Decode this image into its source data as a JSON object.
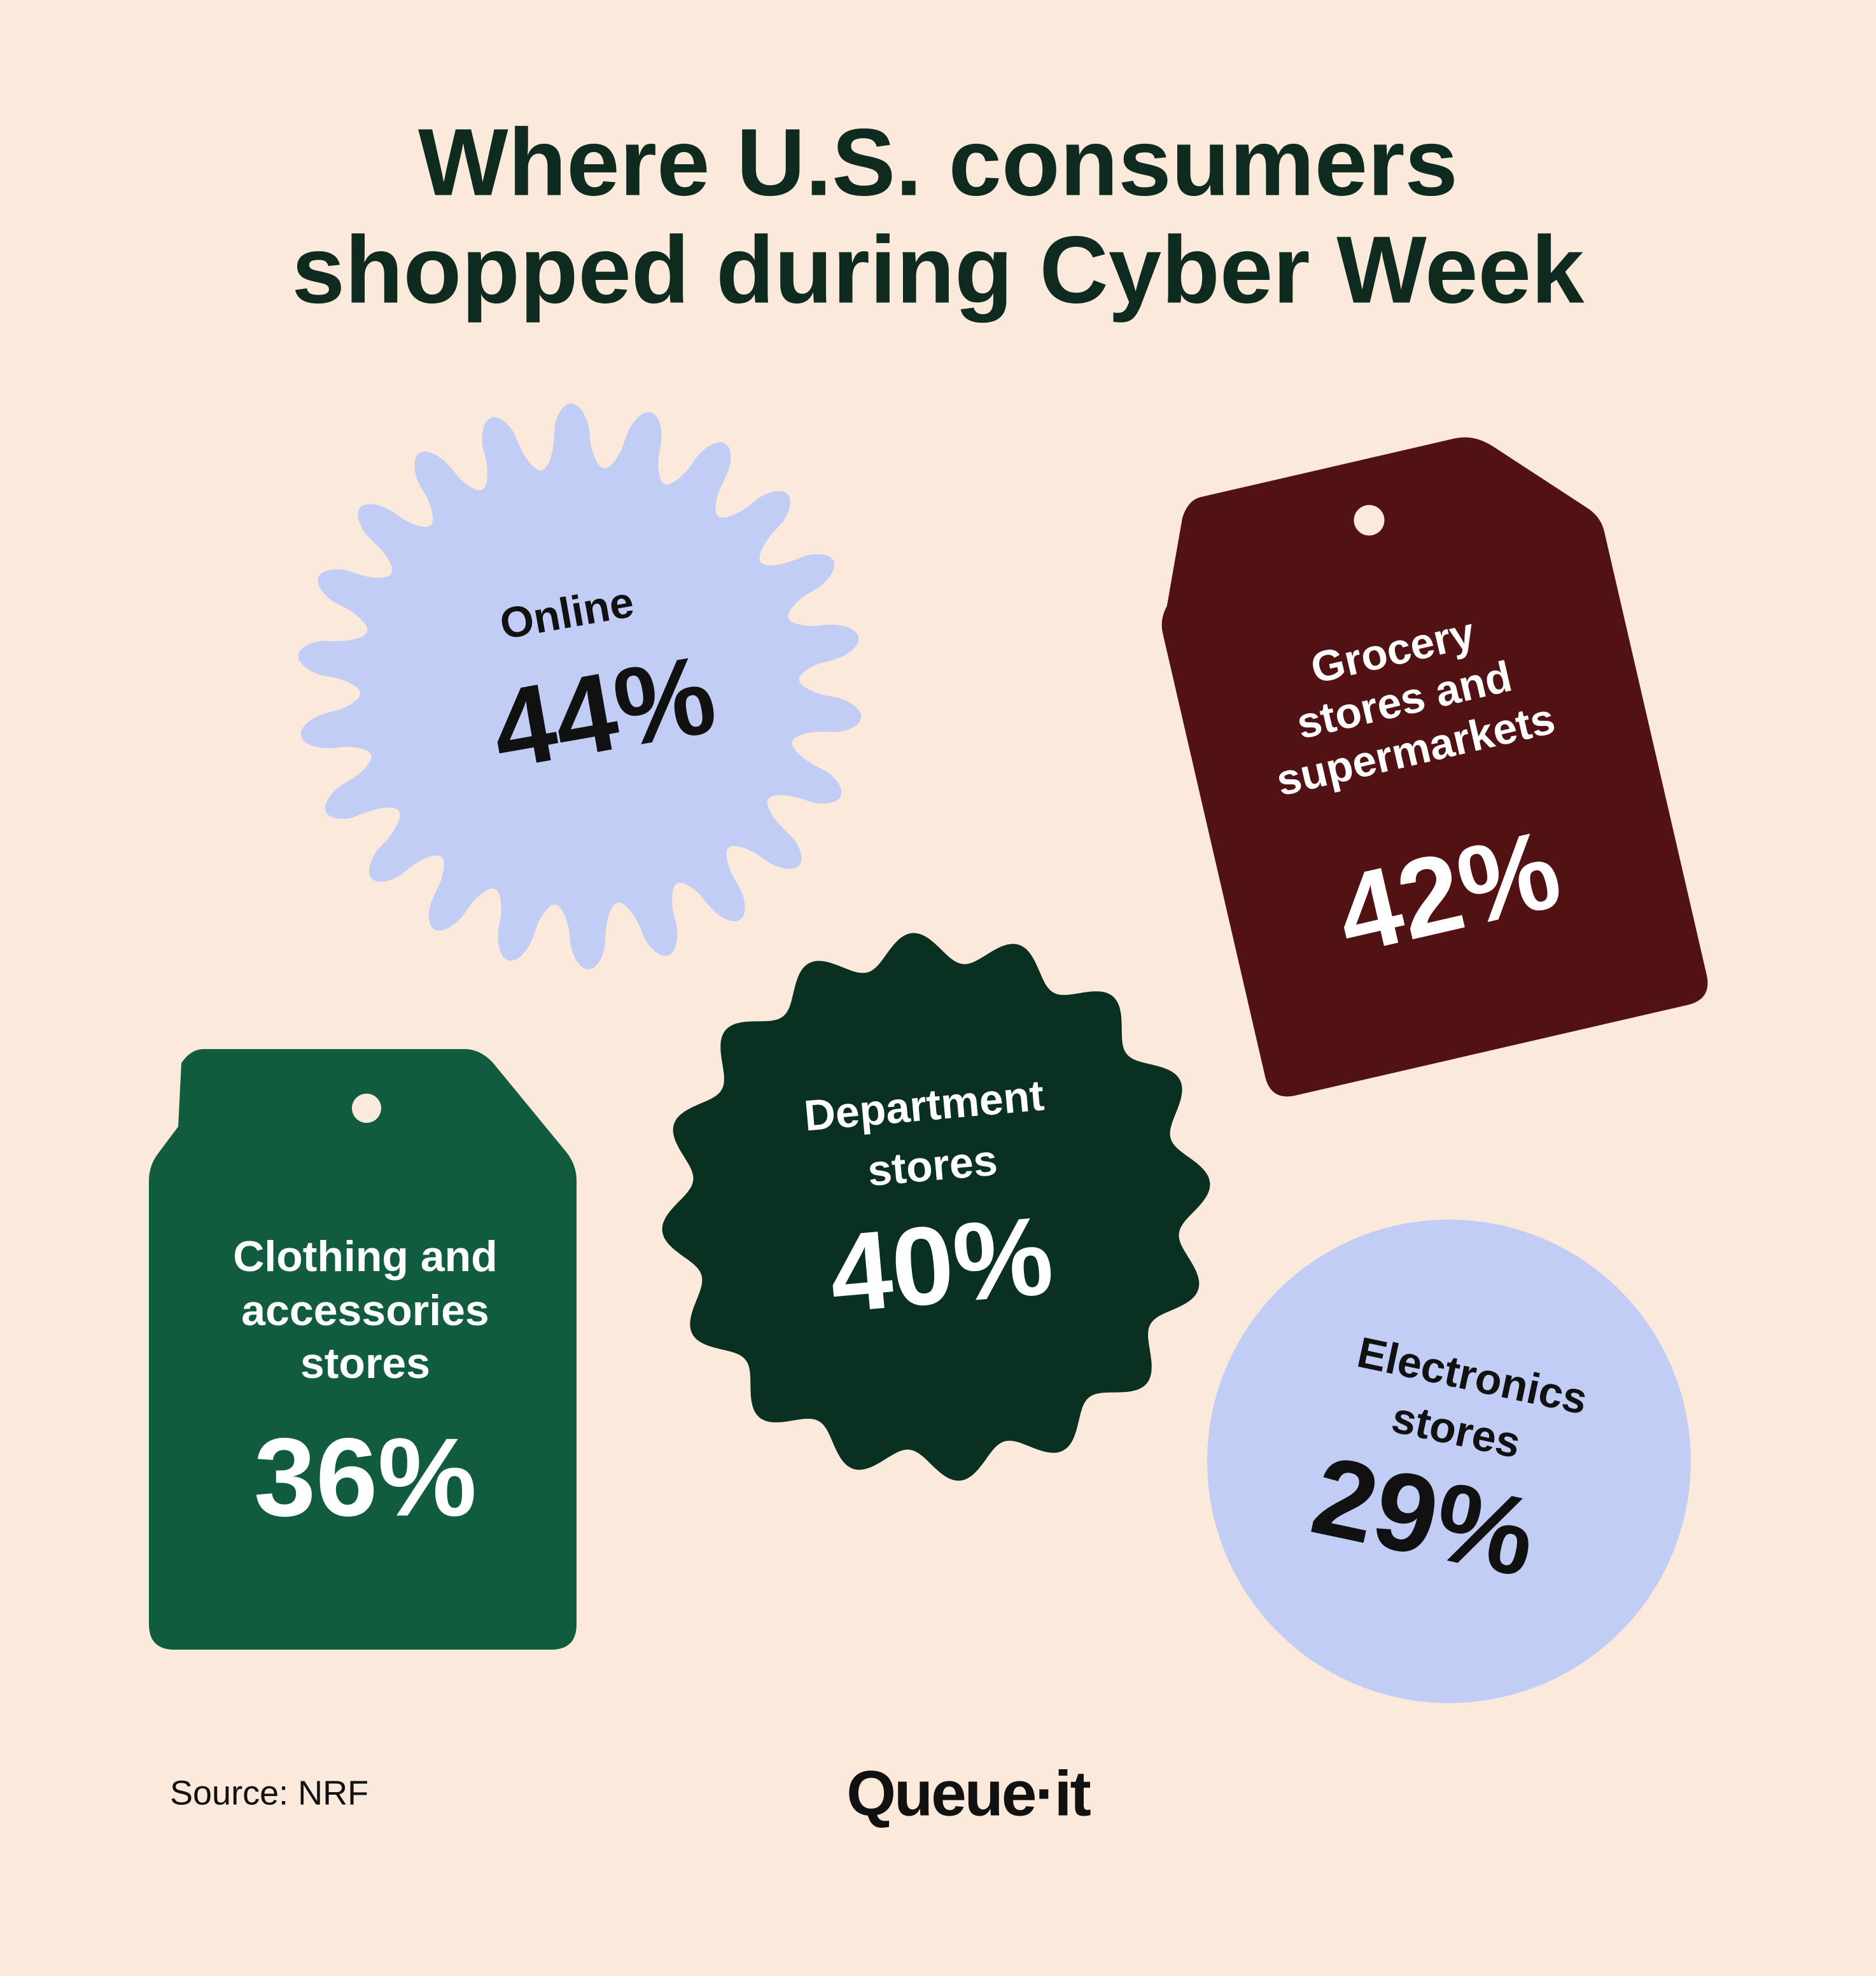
{
  "title": {
    "lines": [
      "Where U.S. consumers",
      "shopped during Cyber Week"
    ]
  },
  "items": [
    {
      "label_lines": [
        "Online"
      ],
      "value": "44%"
    },
    {
      "label_lines": [
        "Grocery",
        "stores and",
        "supermarkets"
      ],
      "value": "42%"
    },
    {
      "label_lines": [
        "Department",
        "stores"
      ],
      "value": "40%"
    },
    {
      "label_lines": [
        "Clothing and",
        "accessories",
        "stores"
      ],
      "value": "36%"
    },
    {
      "label_lines": [
        "Electronics",
        "stores"
      ],
      "value": "29%"
    }
  ],
  "source": "Source: NRF",
  "logo": "Queue·it"
}
